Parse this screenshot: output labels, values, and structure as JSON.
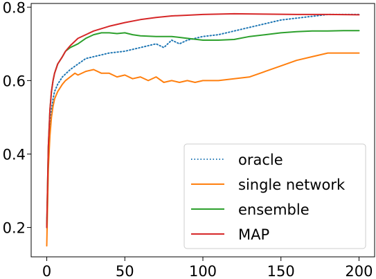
{
  "chart_data": {
    "type": "line",
    "title": "",
    "xlabel": "",
    "ylabel": "",
    "xlim": [
      -10,
      210
    ],
    "ylim": [
      0.12,
      0.81
    ],
    "xticks": [
      0,
      50,
      100,
      150,
      200
    ],
    "yticks": [
      0.2,
      0.4,
      0.6,
      0.8
    ],
    "xtick_labels": [
      "0",
      "50",
      "100",
      "150",
      "200"
    ],
    "ytick_labels": [
      "0.2",
      "0.4",
      "0.6",
      "0.8"
    ],
    "grid": false,
    "legend": {
      "position": "lower right"
    },
    "series": [
      {
        "name": "oracle",
        "style": "dotted",
        "color": "#1f77b4",
        "x": [
          0,
          1,
          2,
          3,
          4,
          5,
          7,
          10,
          15,
          20,
          25,
          30,
          40,
          50,
          60,
          70,
          75,
          80,
          85,
          90,
          100,
          110,
          120,
          130,
          140,
          150,
          160,
          170,
          180,
          190,
          200
        ],
        "y": [
          0.2,
          0.38,
          0.47,
          0.52,
          0.55,
          0.57,
          0.59,
          0.61,
          0.63,
          0.645,
          0.66,
          0.665,
          0.675,
          0.68,
          0.69,
          0.7,
          0.69,
          0.71,
          0.7,
          0.71,
          0.72,
          0.725,
          0.735,
          0.745,
          0.755,
          0.765,
          0.77,
          0.775,
          0.78,
          0.78,
          0.78
        ]
      },
      {
        "name": "single network",
        "style": "solid",
        "color": "#ff7f0e",
        "x": [
          0,
          1,
          2,
          3,
          4,
          5,
          7,
          10,
          12,
          15,
          18,
          20,
          25,
          30,
          35,
          40,
          45,
          50,
          55,
          60,
          65,
          70,
          75,
          80,
          85,
          90,
          95,
          100,
          110,
          120,
          130,
          140,
          150,
          160,
          170,
          180,
          190,
          200
        ],
        "y": [
          0.15,
          0.36,
          0.45,
          0.5,
          0.53,
          0.55,
          0.57,
          0.59,
          0.6,
          0.61,
          0.62,
          0.615,
          0.625,
          0.63,
          0.62,
          0.62,
          0.61,
          0.615,
          0.605,
          0.61,
          0.6,
          0.61,
          0.595,
          0.6,
          0.595,
          0.6,
          0.595,
          0.6,
          0.6,
          0.605,
          0.61,
          0.625,
          0.64,
          0.655,
          0.665,
          0.675,
          0.675,
          0.675
        ]
      },
      {
        "name": "ensemble",
        "style": "solid",
        "color": "#2ca02c",
        "x": [
          0,
          1,
          2,
          3,
          4,
          5,
          7,
          10,
          12,
          15,
          20,
          25,
          30,
          35,
          40,
          45,
          50,
          55,
          60,
          70,
          80,
          90,
          100,
          110,
          120,
          130,
          140,
          150,
          160,
          170,
          180,
          190,
          200
        ],
        "y": [
          0.2,
          0.42,
          0.52,
          0.57,
          0.6,
          0.62,
          0.645,
          0.665,
          0.68,
          0.69,
          0.7,
          0.715,
          0.725,
          0.73,
          0.73,
          0.728,
          0.73,
          0.725,
          0.722,
          0.72,
          0.72,
          0.715,
          0.71,
          0.71,
          0.712,
          0.72,
          0.725,
          0.73,
          0.733,
          0.735,
          0.735,
          0.736,
          0.736
        ]
      },
      {
        "name": "MAP",
        "style": "solid",
        "color": "#d62728",
        "x": [
          0,
          1,
          2,
          3,
          4,
          5,
          7,
          10,
          12,
          15,
          20,
          25,
          30,
          40,
          50,
          60,
          70,
          80,
          90,
          100,
          120,
          140,
          160,
          180,
          200
        ],
        "y": [
          0.2,
          0.42,
          0.52,
          0.57,
          0.6,
          0.62,
          0.645,
          0.665,
          0.68,
          0.695,
          0.715,
          0.725,
          0.735,
          0.748,
          0.758,
          0.766,
          0.772,
          0.776,
          0.778,
          0.78,
          0.782,
          0.781,
          0.78,
          0.78,
          0.779
        ]
      }
    ]
  }
}
